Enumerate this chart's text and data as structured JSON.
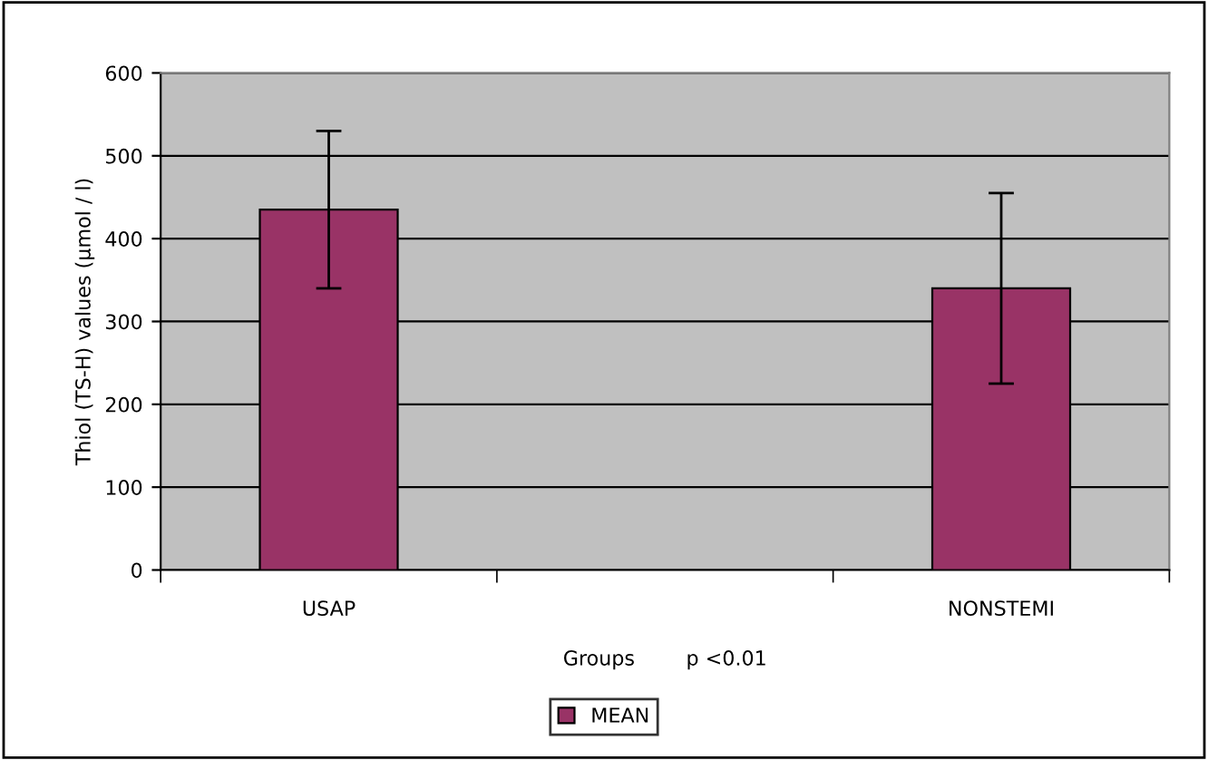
{
  "chart_data": {
    "type": "bar",
    "xlabel": "Groups        p <0.01",
    "ylabel": "Thiol (TS-H) values (μmol / l)",
    "categories": [
      "USAP",
      null,
      "NONSTEMI"
    ],
    "series": [
      {
        "name": "MEAN",
        "color": "#993366",
        "values": [
          435,
          null,
          340
        ],
        "errors": [
          95,
          null,
          115
        ]
      }
    ],
    "ylim": [
      0,
      600
    ],
    "yticks": [
      0,
      100,
      200,
      300,
      400,
      500,
      600
    ],
    "grid": "y",
    "legend": "bottom"
  }
}
